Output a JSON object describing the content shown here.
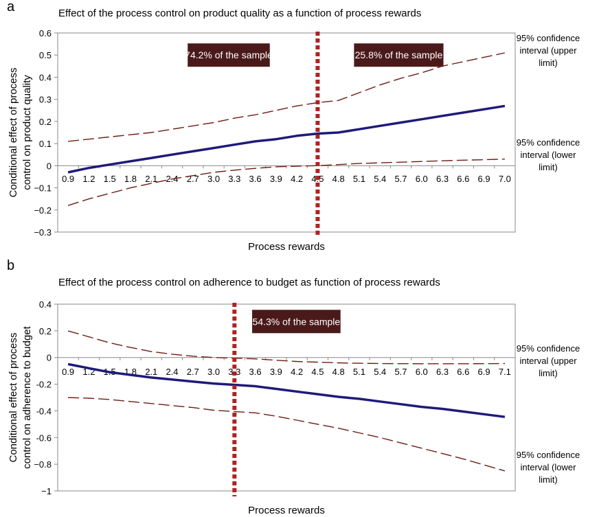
{
  "chart_data": [
    {
      "panel_letter": "a",
      "type": "line",
      "title": "Effect of the process control on product quality as a function of process rewards",
      "xlabel": "Process rewards",
      "ylabel_lines": [
        "Conditional effect of process",
        "control on product quality"
      ],
      "ylim": [
        -0.3,
        0.6
      ],
      "yticks": [
        {
          "value": 0.6,
          "label": "0.6"
        },
        {
          "value": 0.5,
          "label": "0.5"
        },
        {
          "value": 0.4,
          "label": "0.4"
        },
        {
          "value": 0.3,
          "label": "0.3"
        },
        {
          "value": 0.2,
          "label": "0.2"
        },
        {
          "value": 0.1,
          "label": "0.1"
        },
        {
          "value": 0,
          "label": "0"
        },
        {
          "value": -0.1,
          "label": "−0.1"
        },
        {
          "value": -0.2,
          "label": "−0.2"
        },
        {
          "value": -0.3,
          "label": "−0.3"
        }
      ],
      "categories": [
        "0.9",
        "1.2",
        "1.5",
        "1.8",
        "2.1",
        "2.4",
        "2.7",
        "3.0",
        "3.3",
        "3.6",
        "3.9",
        "4.2",
        "4.5",
        "4.8",
        "5.1",
        "5.4",
        "5.7",
        "6.0",
        "6.3",
        "6.6",
        "6.9",
        "7.0"
      ],
      "series": [
        {
          "role": "effect",
          "color": "#1f1a7a",
          "values": [
            -0.03,
            -0.01,
            0.005,
            0.02,
            0.035,
            0.05,
            0.065,
            0.08,
            0.095,
            0.11,
            0.12,
            0.135,
            0.145,
            0.15,
            0.165,
            0.18,
            0.195,
            0.21,
            0.225,
            0.24,
            0.255,
            0.27
          ]
        },
        {
          "role": "upper",
          "name_lines": [
            "95% confidence",
            "interval (upper",
            "limit)"
          ],
          "color": "#6e1a14",
          "values": [
            0.11,
            0.12,
            0.13,
            0.14,
            0.15,
            0.165,
            0.18,
            0.195,
            0.215,
            0.23,
            0.25,
            0.27,
            0.285,
            0.295,
            0.33,
            0.365,
            0.395,
            0.42,
            0.45,
            0.47,
            0.49,
            0.51
          ]
        },
        {
          "role": "lower",
          "name_lines": [
            "95% confidence",
            "interval (lower",
            "limit)"
          ],
          "color": "#6e1a14",
          "values": [
            -0.18,
            -0.15,
            -0.125,
            -0.1,
            -0.08,
            -0.06,
            -0.045,
            -0.03,
            -0.02,
            -0.012,
            -0.005,
            -0.002,
            0.0,
            0.005,
            0.01,
            0.013,
            0.016,
            0.019,
            0.022,
            0.025,
            0.027,
            0.03
          ]
        }
      ],
      "divider_index": 12,
      "divider_color": "#b22222",
      "annotations": [
        {
          "text": "74.2% of the sample",
          "from_index": 5.75,
          "to_index": 9.7,
          "y": 0.5
        },
        {
          "text": "25.8% of the sample",
          "from_index": 13.75,
          "to_index": 18.05,
          "y": 0.5
        }
      ],
      "annotation_color": "#4a1a1a",
      "grid": false
    },
    {
      "panel_letter": "b",
      "type": "line",
      "title": "Effect of the process control on adherence to budget as function of process rewards",
      "xlabel": "Process rewards",
      "ylabel_lines": [
        "Conditional effect of process",
        "control on adherence to budget"
      ],
      "ylim": [
        -1,
        0.4
      ],
      "yticks": [
        {
          "value": 0.4,
          "label": "0.4"
        },
        {
          "value": 0.2,
          "label": "0.2"
        },
        {
          "value": 0,
          "label": "0"
        },
        {
          "value": -0.2,
          "label": "-0.2"
        },
        {
          "value": -0.4,
          "label": "-0.4"
        },
        {
          "value": -0.6,
          "label": "-0.6"
        },
        {
          "value": -0.8,
          "label": "−0.8"
        },
        {
          "value": -1,
          "label": "−1"
        }
      ],
      "categories": [
        "0.9",
        "1.2",
        "1.5",
        "1.8",
        "2.1",
        "2.4",
        "2.7",
        "3.0",
        "3.3",
        "3.6",
        "3.9",
        "4.2",
        "4.5",
        "4.8",
        "5.1",
        "5.4",
        "5.7",
        "6.0",
        "6.3",
        "6.6",
        "6.9",
        "7.1"
      ],
      "series": [
        {
          "role": "effect",
          "color": "#1f1a7a",
          "values": [
            -0.05,
            -0.08,
            -0.11,
            -0.13,
            -0.15,
            -0.165,
            -0.18,
            -0.195,
            -0.205,
            -0.215,
            -0.235,
            -0.255,
            -0.275,
            -0.295,
            -0.31,
            -0.33,
            -0.35,
            -0.37,
            -0.385,
            -0.405,
            -0.425,
            -0.445
          ]
        },
        {
          "role": "upper",
          "name_lines": [
            "95% confidence",
            "interval (upper",
            "limit)"
          ],
          "color": "#6e1a14",
          "values": [
            0.2,
            0.155,
            0.11,
            0.075,
            0.045,
            0.025,
            0.01,
            0.0,
            -0.005,
            -0.01,
            -0.02,
            -0.03,
            -0.035,
            -0.04,
            -0.043,
            -0.045,
            -0.046,
            -0.047,
            -0.047,
            -0.047,
            -0.046,
            -0.045
          ]
        },
        {
          "role": "lower",
          "name_lines": [
            "95% confidence",
            "interval (lower",
            "limit)"
          ],
          "color": "#6e1a14",
          "values": [
            -0.3,
            -0.305,
            -0.315,
            -0.33,
            -0.345,
            -0.36,
            -0.375,
            -0.395,
            -0.405,
            -0.415,
            -0.44,
            -0.47,
            -0.5,
            -0.53,
            -0.565,
            -0.6,
            -0.64,
            -0.68,
            -0.72,
            -0.76,
            -0.805,
            -0.85
          ]
        }
      ],
      "divider_index": 8,
      "divider_color": "#b22222",
      "annotations": [
        {
          "text": "54.3% of the sample",
          "from_index": 8.85,
          "to_index": 13.1,
          "y": 0.27
        }
      ],
      "annotation_color": "#4a1a1a",
      "grid": false
    }
  ]
}
